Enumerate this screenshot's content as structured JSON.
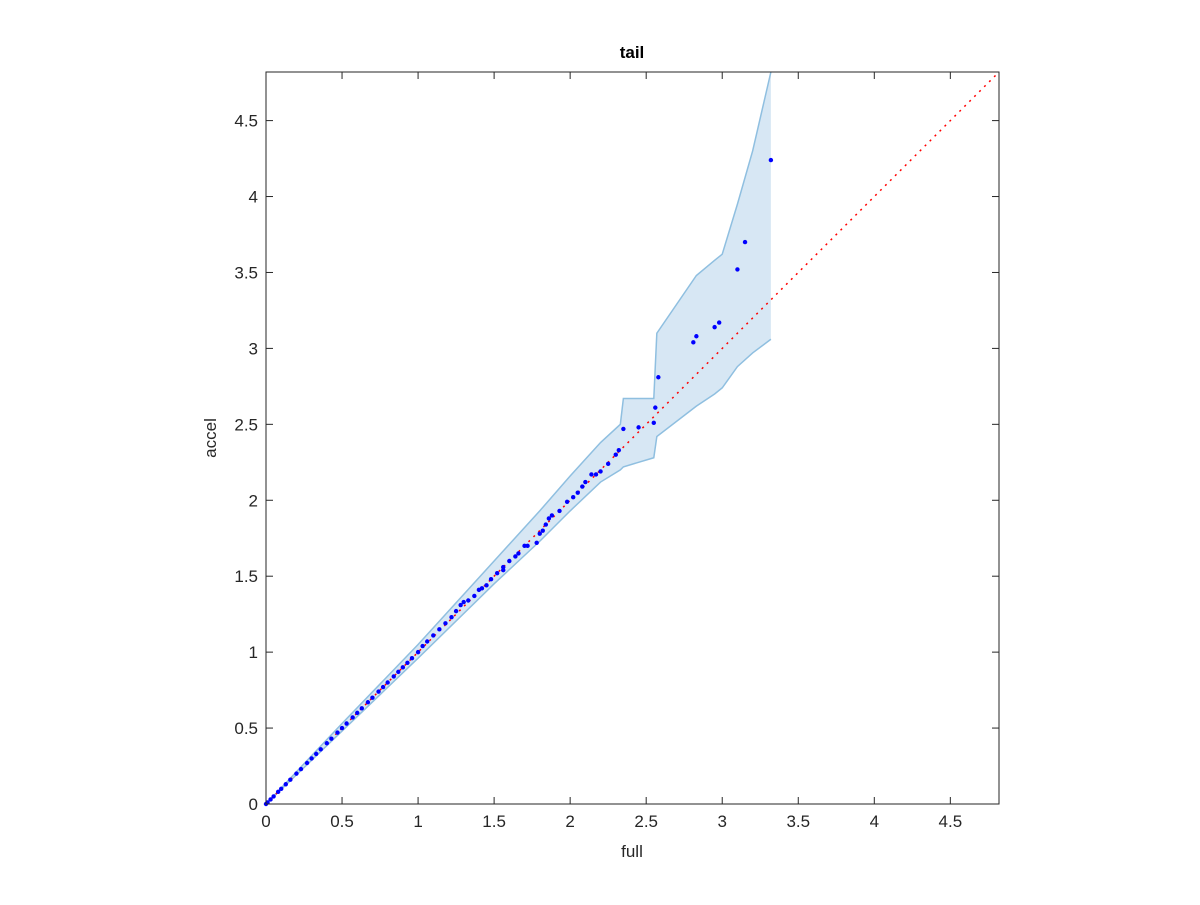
{
  "chart_data": {
    "type": "scatter",
    "title": "tail",
    "x_label": "full",
    "y_label": "accel",
    "xlim": [
      0,
      4.82
    ],
    "ylim": [
      0,
      4.82
    ],
    "xticks": [
      0,
      0.5,
      1,
      1.5,
      2,
      2.5,
      3,
      3.5,
      4,
      4.5
    ],
    "yticks": [
      0,
      0.5,
      1,
      1.5,
      2,
      2.5,
      3,
      3.5,
      4,
      4.5
    ],
    "points": {
      "color": "#0000ff",
      "x": [
        0,
        0.01,
        0.03,
        0.05,
        0.08,
        0.1,
        0.13,
        0.16,
        0.2,
        0.23,
        0.27,
        0.3,
        0.33,
        0.36,
        0.4,
        0.43,
        0.47,
        0.5,
        0.53,
        0.57,
        0.6,
        0.63,
        0.67,
        0.7,
        0.74,
        0.77,
        0.8,
        0.84,
        0.87,
        0.9,
        0.93,
        0.96,
        1.0,
        1.03,
        1.06,
        1.1,
        1.14,
        1.18,
        1.22,
        1.25,
        1.28,
        1.3,
        1.33,
        1.37,
        1.4,
        1.42,
        1.45,
        1.48,
        1.52,
        1.56,
        1.56,
        1.6,
        1.64,
        1.66,
        1.7,
        1.72,
        1.78,
        1.8,
        1.82,
        1.84,
        1.86,
        1.88,
        1.93,
        1.98,
        2.02,
        2.05,
        2.08,
        2.1,
        2.14,
        2.17,
        2.2,
        2.25,
        2.3,
        2.32,
        2.35,
        2.45,
        2.55,
        2.56,
        2.58,
        2.81,
        2.83,
        2.95,
        2.98,
        3.1,
        3.15,
        3.32
      ],
      "y": [
        0,
        0.01,
        0.03,
        0.05,
        0.08,
        0.1,
        0.13,
        0.16,
        0.2,
        0.23,
        0.27,
        0.3,
        0.33,
        0.36,
        0.4,
        0.43,
        0.47,
        0.5,
        0.53,
        0.57,
        0.6,
        0.63,
        0.67,
        0.7,
        0.74,
        0.77,
        0.8,
        0.84,
        0.87,
        0.9,
        0.93,
        0.96,
        1.0,
        1.04,
        1.07,
        1.11,
        1.15,
        1.19,
        1.23,
        1.27,
        1.31,
        1.33,
        1.34,
        1.37,
        1.41,
        1.42,
        1.44,
        1.48,
        1.52,
        1.54,
        1.56,
        1.6,
        1.63,
        1.65,
        1.7,
        1.7,
        1.72,
        1.78,
        1.8,
        1.84,
        1.88,
        1.9,
        1.93,
        1.99,
        2.02,
        2.05,
        2.09,
        2.12,
        2.17,
        2.17,
        2.19,
        2.24,
        2.3,
        2.33,
        2.47,
        2.48,
        2.51,
        2.61,
        2.81,
        3.04,
        3.08,
        3.14,
        3.17,
        3.52,
        3.7,
        4.24
      ]
    },
    "band": {
      "color": "#d7e7f4",
      "edge_color": "#8fbfe0",
      "x": [
        0,
        0.5,
        1,
        1.5,
        1.8,
        2,
        2.2,
        2.33,
        2.35,
        2.55,
        2.57,
        2.83,
        2.95,
        3.0,
        3.1,
        3.2,
        3.32
      ],
      "upper": [
        0,
        0.53,
        1.05,
        1.6,
        1.93,
        2.16,
        2.38,
        2.5,
        2.67,
        2.67,
        3.1,
        3.48,
        3.58,
        3.62,
        3.95,
        4.3,
        4.82
      ],
      "lower": [
        0,
        0.48,
        0.96,
        1.45,
        1.73,
        1.93,
        2.12,
        2.2,
        2.22,
        2.28,
        2.42,
        2.62,
        2.7,
        2.74,
        2.88,
        2.97,
        3.06
      ]
    },
    "reference": {
      "color": "#ff0000",
      "x": [
        0,
        4.82
      ],
      "y": [
        0,
        4.82
      ]
    }
  }
}
